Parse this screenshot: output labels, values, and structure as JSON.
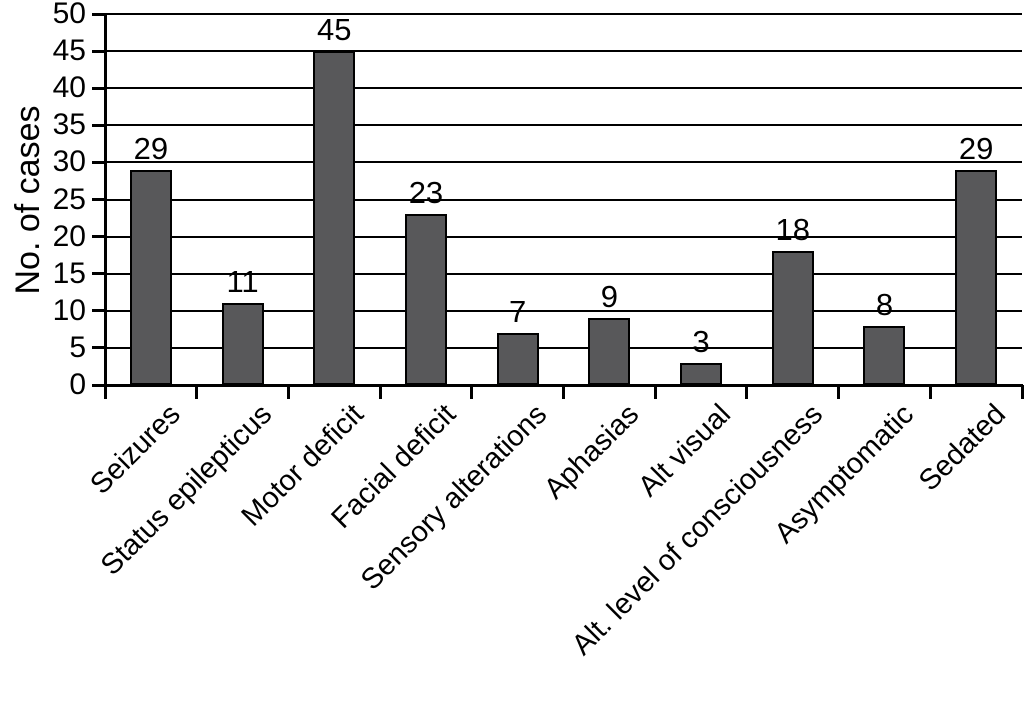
{
  "chart_data": {
    "type": "bar",
    "title": "",
    "xlabel": "",
    "ylabel": "No. of cases",
    "categories": [
      "Seizures",
      "Status epilepticus",
      "Motor deficit",
      "Facial deficit",
      "Sensory alterations",
      "Aphasias",
      "Alt visual",
      "Alt. level of consciousness",
      "Asymptomatic",
      "Sedated"
    ],
    "values": [
      29,
      11,
      45,
      23,
      7,
      9,
      3,
      18,
      8,
      29
    ],
    "ylim": [
      0,
      50
    ],
    "ytick_step": 5,
    "grid": "horizontal",
    "legend": "none",
    "bar_color": "#58585a",
    "bar_border_color": "#000000",
    "axis_color": "#000000",
    "label_color": "#000000"
  }
}
